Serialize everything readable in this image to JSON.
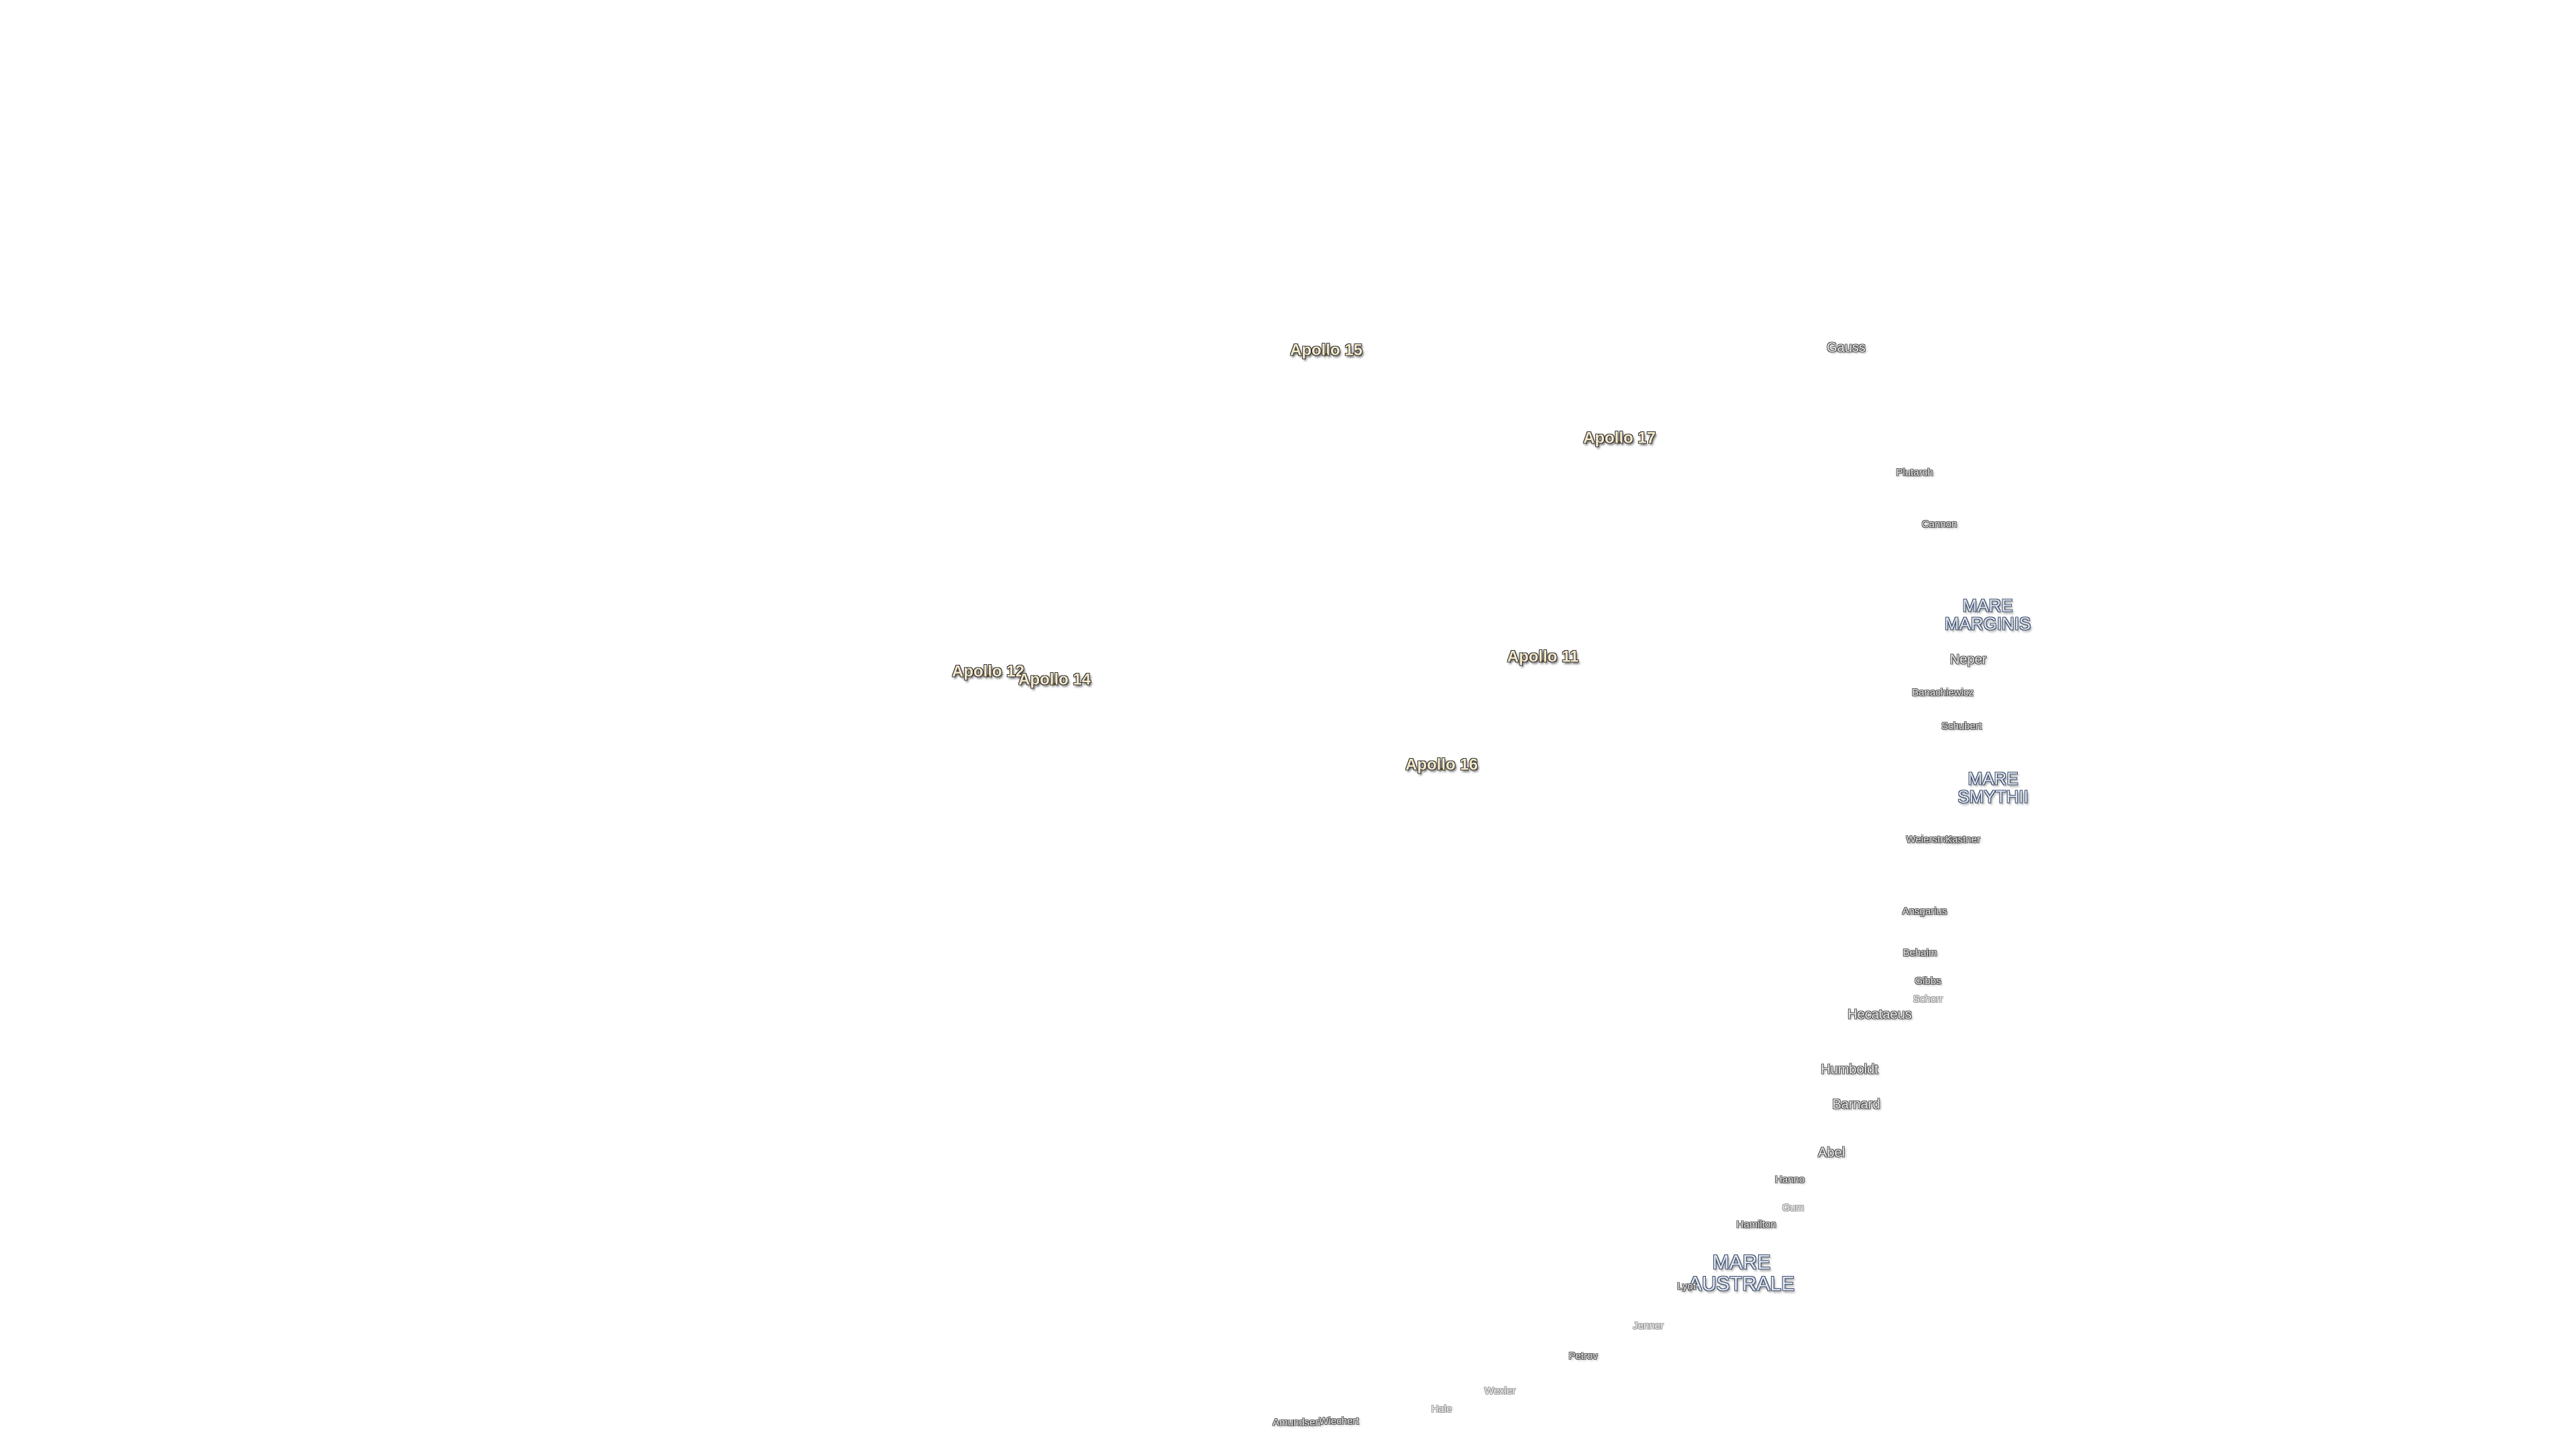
{
  "missions": [
    "Apollo 15",
    "Apollo 17",
    "Apollo 11",
    "Apollo 12",
    "Apollo 14",
    "Apollo 16"
  ],
  "maria": [
    [
      "MARE",
      "MARGINIS"
    ],
    [
      "MARE",
      "SMYTHII"
    ],
    [
      "MARE",
      "AUSTRALE"
    ]
  ],
  "craters": [
    "Gauss",
    "Plutarch",
    "Cannon",
    "Neper",
    "Banachiewicz",
    "Schubert",
    "Weierstrass",
    "Kastner",
    "Ansgarius",
    "Behaim",
    "Gibbs",
    "Schorr",
    "Hecataeus",
    "Humboldt",
    "Barnard",
    "Abel",
    "Hanno",
    "Gum",
    "Hamilton",
    "Lyot",
    "Jenner",
    "Petrov",
    "Wexler",
    "Hale",
    "Amundsen",
    "Wiechert"
  ]
}
